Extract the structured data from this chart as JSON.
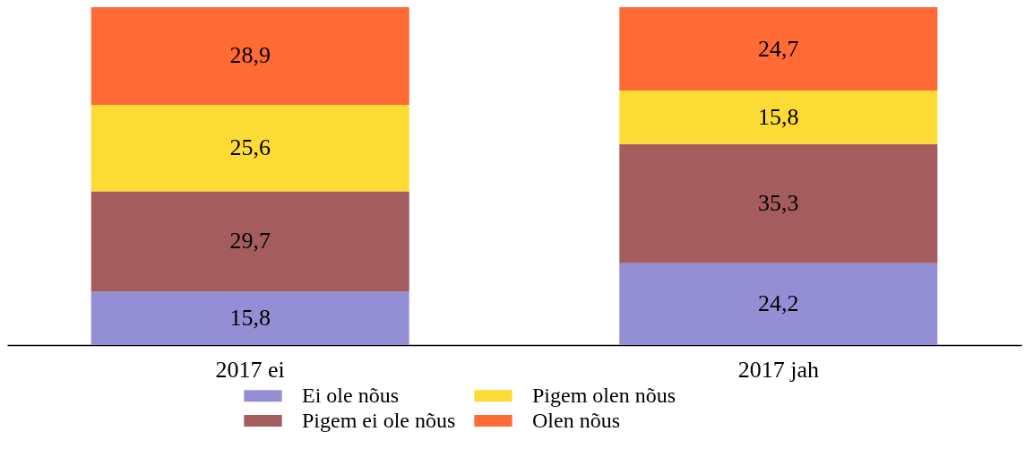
{
  "chart_data": {
    "type": "bar",
    "stacked": true,
    "categories": [
      "2017 ei",
      "2017 jah"
    ],
    "series": [
      {
        "name": "Ei ole nõus",
        "color": "#948fd4",
        "values": [
          15.8,
          24.2
        ],
        "value_labels": [
          "15,8",
          "24,2"
        ]
      },
      {
        "name": "Pigem ei ole nõus",
        "color": "#a45c5f",
        "values": [
          29.7,
          35.3
        ],
        "value_labels": [
          "29,7",
          "35,3"
        ]
      },
      {
        "name": "Pigem olen nõus",
        "color": "#fddb35",
        "values": [
          25.6,
          15.8
        ],
        "value_labels": [
          "25,6",
          "15,8"
        ]
      },
      {
        "name": "Olen nõus",
        "color": "#ff6a35",
        "values": [
          28.9,
          24.7
        ],
        "value_labels": [
          "28,9",
          "24,7"
        ]
      }
    ],
    "legend": "bottom"
  }
}
